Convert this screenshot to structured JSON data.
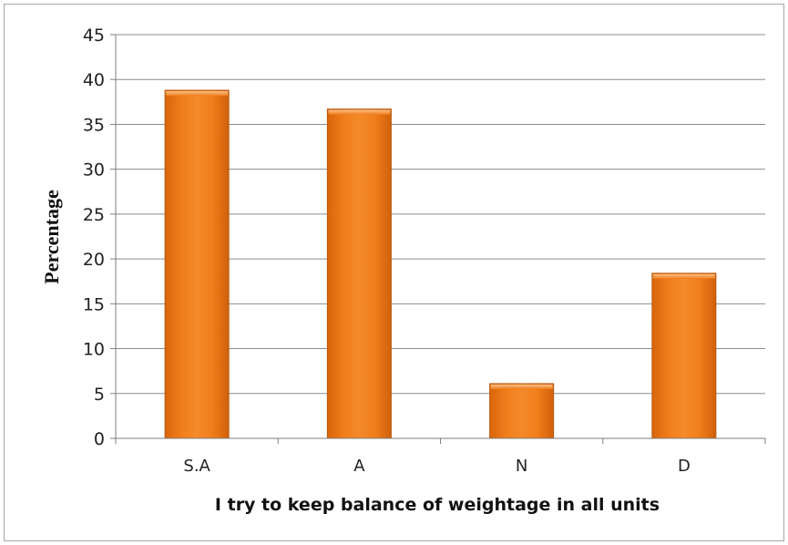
{
  "chart_data": {
    "type": "bar",
    "categories": [
      "S.A",
      "A",
      "N",
      "D"
    ],
    "values": [
      38.8,
      36.7,
      6.1,
      18.4
    ],
    "title": "",
    "xlabel": "I try to keep balance of weightage in all units",
    "ylabel": "Percentage",
    "ylim": [
      0,
      45
    ],
    "yticks": [
      0,
      5,
      10,
      15,
      20,
      25,
      30,
      35,
      40,
      45
    ],
    "grid": true,
    "legend": "none",
    "bar_color": "#f07d1a",
    "bar_edge_color": "#b8570a",
    "bar_highlight_color": "#f8a457",
    "grid_color": "#8c8c8c"
  }
}
